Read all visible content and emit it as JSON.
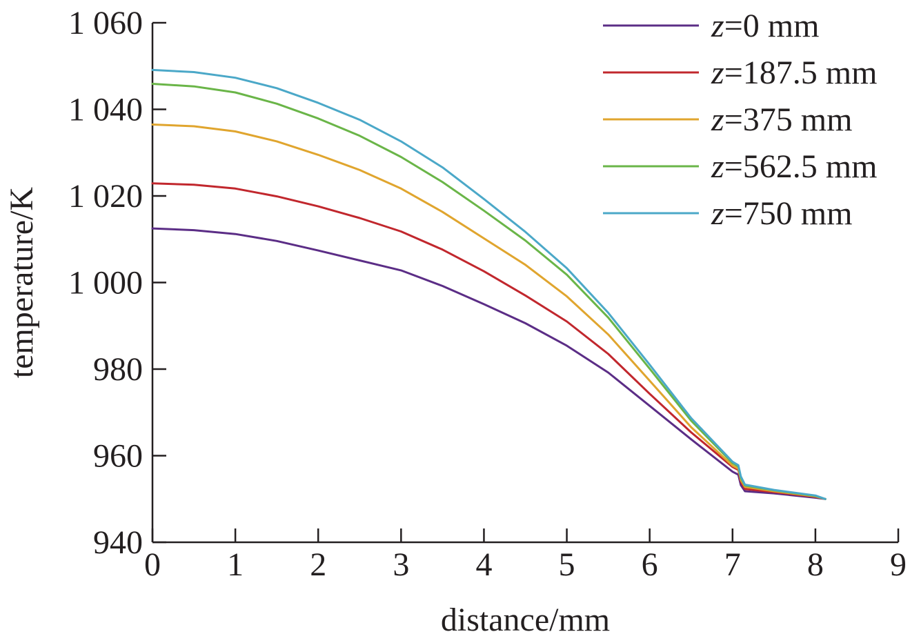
{
  "chart_data": {
    "type": "line",
    "title": "",
    "xlabel": "distance/mm",
    "ylabel": "temperature/K",
    "xlim": [
      0,
      9
    ],
    "ylim": [
      940,
      1060
    ],
    "xticks": [
      0,
      1,
      2,
      3,
      4,
      5,
      6,
      7,
      8,
      9
    ],
    "xtick_labels": [
      "0",
      "1",
      "2",
      "3",
      "4",
      "5",
      "6",
      "7",
      "8",
      "9"
    ],
    "yticks": [
      940,
      960,
      980,
      1000,
      1020,
      1040,
      1060
    ],
    "ytick_labels": [
      "940",
      "960",
      "980",
      "1 000",
      "1 020",
      "1 040",
      "1 060"
    ],
    "grid": false,
    "legend_position": "top-right",
    "series": [
      {
        "name": "z=0 mm",
        "name_var": "z",
        "name_rest": "=0 mm",
        "color": "#5b2d86",
        "x": [
          0,
          0.5,
          1.0,
          1.5,
          2.0,
          2.5,
          3.0,
          3.5,
          4.0,
          4.5,
          5.0,
          5.5,
          6.0,
          6.5,
          7.0,
          7.07,
          7.1,
          7.15,
          7.5,
          8.0,
          8.12
        ],
        "y": [
          1012.5,
          1012.1,
          1011.2,
          1009.6,
          1007.4,
          1005.1,
          1002.8,
          999.2,
          995.0,
          990.6,
          985.4,
          979.2,
          971.5,
          963.8,
          956.3,
          955.6,
          953.2,
          951.8,
          951.3,
          950.3,
          950.0
        ]
      },
      {
        "name": "z=187.5 mm",
        "name_var": "z",
        "name_rest": "=187.5 mm",
        "color": "#c1272d",
        "x": [
          0,
          0.5,
          1.0,
          1.5,
          2.0,
          2.5,
          3.0,
          3.5,
          4.0,
          4.5,
          5.0,
          5.5,
          6.0,
          6.5,
          7.0,
          7.07,
          7.1,
          7.15,
          7.5,
          8.0,
          8.12
        ],
        "y": [
          1022.9,
          1022.6,
          1021.7,
          1019.9,
          1017.6,
          1014.9,
          1011.8,
          1007.6,
          1002.6,
          997.0,
          991.0,
          983.5,
          974.3,
          965.4,
          957.4,
          956.7,
          954.0,
          952.3,
          951.6,
          950.5,
          950.0
        ]
      },
      {
        "name": "z=375 mm",
        "name_var": "z",
        "name_rest": "=375 mm",
        "color": "#e0a52e",
        "x": [
          0,
          0.5,
          1.0,
          1.5,
          2.0,
          2.5,
          3.0,
          3.5,
          4.0,
          4.5,
          5.0,
          5.5,
          6.0,
          6.5,
          7.0,
          7.07,
          7.1,
          7.15,
          7.5,
          8.0,
          8.12
        ],
        "y": [
          1036.5,
          1036.1,
          1034.9,
          1032.6,
          1029.5,
          1026.0,
          1021.7,
          1016.3,
          1010.2,
          1004.1,
          996.8,
          988.0,
          977.3,
          966.6,
          957.7,
          957.0,
          954.4,
          952.8,
          951.8,
          950.6,
          950.0
        ]
      },
      {
        "name": "z=562.5 mm",
        "name_var": "z",
        "name_rest": "=562.5 mm",
        "color": "#6ab548",
        "x": [
          0,
          0.5,
          1.0,
          1.5,
          2.0,
          2.5,
          3.0,
          3.5,
          4.0,
          4.5,
          5.0,
          5.5,
          6.0,
          6.5,
          7.0,
          7.07,
          7.1,
          7.15,
          7.5,
          8.0,
          8.12
        ],
        "y": [
          1045.9,
          1045.3,
          1043.9,
          1041.3,
          1037.9,
          1033.9,
          1029.0,
          1023.2,
          1016.6,
          1009.7,
          1001.8,
          991.9,
          980.1,
          968.1,
          958.3,
          957.5,
          954.9,
          953.1,
          952.0,
          950.7,
          950.0
        ]
      },
      {
        "name": "z=750 mm",
        "name_var": "z",
        "name_rest": "=750 mm",
        "color": "#4ba8c8",
        "x": [
          0,
          0.5,
          1.0,
          1.5,
          2.0,
          2.5,
          3.0,
          3.5,
          4.0,
          4.5,
          5.0,
          5.5,
          6.0,
          6.5,
          7.0,
          7.07,
          7.1,
          7.15,
          7.5,
          8.0,
          8.12
        ],
        "y": [
          1049.1,
          1048.6,
          1047.3,
          1044.9,
          1041.5,
          1037.6,
          1032.6,
          1026.6,
          1019.3,
          1011.7,
          1003.3,
          993.0,
          981.0,
          968.7,
          958.6,
          957.8,
          955.2,
          953.3,
          952.1,
          950.8,
          950.0
        ]
      }
    ]
  }
}
